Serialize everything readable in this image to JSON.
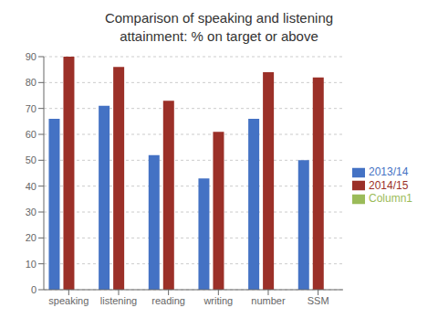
{
  "chart_data": {
    "type": "bar",
    "title": "Comparison of speaking and listening\nattainment: % on target or above",
    "categories": [
      "speaking",
      "listening",
      "reading",
      "writing",
      "number",
      "SSM"
    ],
    "series": [
      {
        "name": "2013/14",
        "values": [
          66,
          71,
          52,
          43,
          66,
          50
        ],
        "color": "#4472C4"
      },
      {
        "name": "2014/15",
        "values": [
          90,
          86,
          73,
          61,
          84,
          82
        ],
        "color": "#9B3028"
      },
      {
        "name": "Column1",
        "values": [
          0,
          0,
          0,
          0,
          0,
          0
        ],
        "color": "#9BBB59"
      }
    ],
    "ylim": [
      0,
      90
    ],
    "yticks": [
      0,
      10,
      20,
      30,
      40,
      50,
      60,
      70,
      80,
      90
    ],
    "grid": true,
    "legend": "right"
  }
}
